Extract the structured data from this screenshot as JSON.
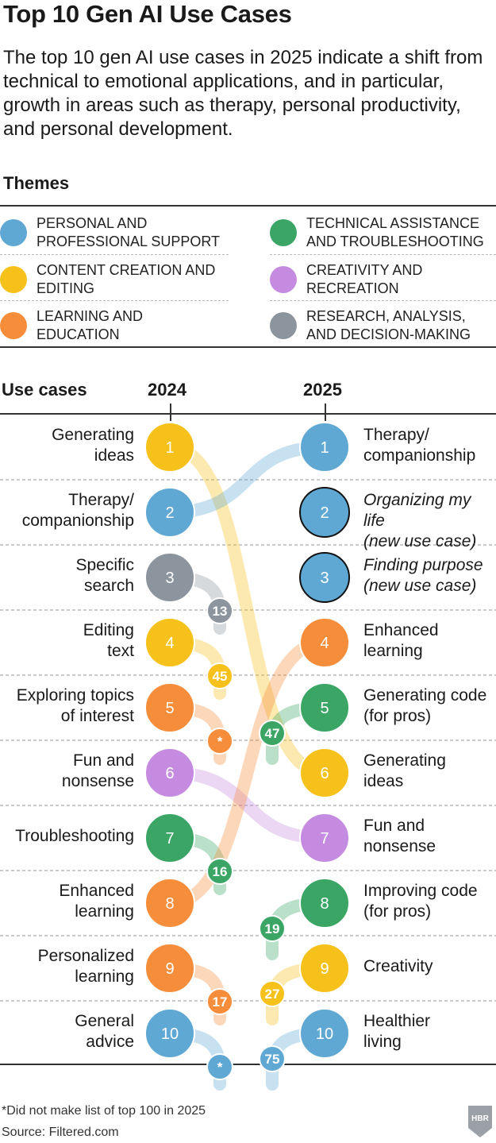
{
  "title": "Top 10 Gen AI Use Cases",
  "subtitle": "The top 10 gen AI use cases in 2025 indicate a shift from technical to emotional applications, and in particular, growth in areas such as therapy, personal productivity, and personal development.",
  "themes_heading": "Themes",
  "themes": [
    {
      "key": "support",
      "label": "PERSONAL AND PROFESSIONAL SUPPORT",
      "color": "#5fa8d3"
    },
    {
      "key": "technical",
      "label": "TECHNICAL ASSISTANCE AND TROUBLESHOOTING",
      "color": "#3aa565"
    },
    {
      "key": "content",
      "label": "CONTENT CREATION AND EDITING",
      "color": "#f6c11b"
    },
    {
      "key": "creativity",
      "label": "CREATIVITY AND RECREATION",
      "color": "#c58be0"
    },
    {
      "key": "learning",
      "label": "LEARNING AND EDUCATION",
      "color": "#f58d3a"
    },
    {
      "key": "research",
      "label": "RESEARCH, ANALYSIS, AND DECISION-MAKING",
      "color": "#8c959d"
    }
  ],
  "use_cases_label": "Use cases",
  "col_2024": "2024",
  "col_2025": "2025",
  "chart_data": {
    "type": "slope",
    "ranks_2024": [
      {
        "rank": 1,
        "label": "Generating ideas",
        "theme": "content",
        "rank_2025": "6"
      },
      {
        "rank": 2,
        "label": "Therapy/ companionship",
        "theme": "support",
        "rank_2025": "1"
      },
      {
        "rank": 3,
        "label": "Specific search",
        "theme": "research",
        "rank_2025": "13"
      },
      {
        "rank": 4,
        "label": "Editing text",
        "theme": "content",
        "rank_2025": "45"
      },
      {
        "rank": 5,
        "label": "Exploring topics of interest",
        "theme": "learning",
        "rank_2025": "*"
      },
      {
        "rank": 6,
        "label": "Fun and nonsense",
        "theme": "creativity",
        "rank_2025": "7"
      },
      {
        "rank": 7,
        "label": "Troubleshooting",
        "theme": "technical",
        "rank_2025": "16"
      },
      {
        "rank": 8,
        "label": "Enhanced learning",
        "theme": "learning",
        "rank_2025": "4"
      },
      {
        "rank": 9,
        "label": "Personalized learning",
        "theme": "learning",
        "rank_2025": "17"
      },
      {
        "rank": 10,
        "label": "General advice",
        "theme": "support",
        "rank_2025": "*"
      }
    ],
    "ranks_2025": [
      {
        "rank": 1,
        "label": "Therapy/ companionship",
        "theme": "support",
        "new": false,
        "rank_2024": "2"
      },
      {
        "rank": 2,
        "label": "Organizing my life (new use case)",
        "theme": "support",
        "new": true,
        "rank_2024": ""
      },
      {
        "rank": 3,
        "label": "Finding purpose (new use case)",
        "theme": "support",
        "new": true,
        "rank_2024": ""
      },
      {
        "rank": 4,
        "label": "Enhanced learning",
        "theme": "learning",
        "new": false,
        "rank_2024": "8"
      },
      {
        "rank": 5,
        "label": "Generating code (for pros)",
        "theme": "technical",
        "new": false,
        "rank_2024": "47"
      },
      {
        "rank": 6,
        "label": "Generating ideas",
        "theme": "content",
        "new": false,
        "rank_2024": "1"
      },
      {
        "rank": 7,
        "label": "Fun and nonsense",
        "theme": "creativity",
        "new": false,
        "rank_2024": "6"
      },
      {
        "rank": 8,
        "label": "Improving code (for pros)",
        "theme": "technical",
        "new": false,
        "rank_2024": "19"
      },
      {
        "rank": 9,
        "label": "Creativity",
        "theme": "content",
        "new": false,
        "rank_2024": "27"
      },
      {
        "rank": 10,
        "label": "Healthier living",
        "theme": "support",
        "new": false,
        "rank_2024": "75"
      }
    ]
  },
  "left_labels": [
    [
      "Generating",
      "ideas"
    ],
    [
      "Therapy/",
      "companionship"
    ],
    [
      "Specific",
      "search"
    ],
    [
      "Editing",
      "text"
    ],
    [
      "Exploring topics",
      "of interest"
    ],
    [
      "Fun and",
      "nonsense"
    ],
    [
      "Troubleshooting"
    ],
    [
      "Enhanced",
      "learning"
    ],
    [
      "Personalized",
      "learning"
    ],
    [
      "General",
      "advice"
    ]
  ],
  "right_labels": [
    [
      "Therapy/",
      "companionship"
    ],
    [
      "Organizing my life",
      "(new use case)"
    ],
    [
      "Finding purpose",
      "(new use case)"
    ],
    [
      "Enhanced",
      "learning"
    ],
    [
      "Generating code",
      "(for pros)"
    ],
    [
      "Generating",
      "ideas"
    ],
    [
      "Fun and",
      "nonsense"
    ],
    [
      "Improving code",
      "(for pros)"
    ],
    [
      "Creativity"
    ],
    [
      "Healthier",
      "living"
    ]
  ],
  "footnote": "*Did not make list of top 100 in 2025",
  "source": "Source: Filtered.com",
  "logo_text": "HBR"
}
